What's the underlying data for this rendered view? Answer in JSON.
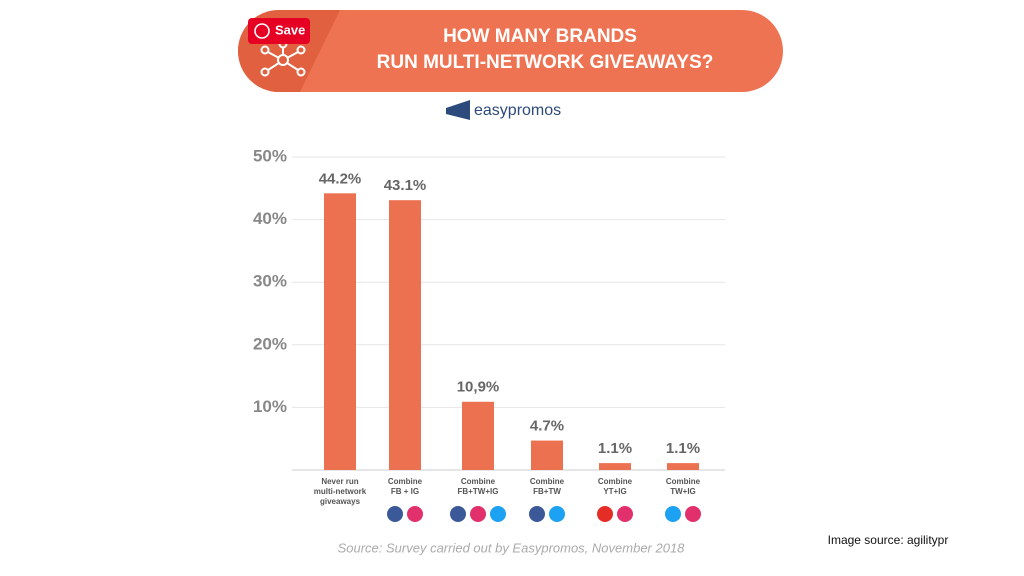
{
  "save_button": "Save",
  "logo": "easypromos",
  "image_source": "Image source: agilitypr",
  "chart_data": {
    "type": "bar",
    "title": [
      "HOW MANY BRANDS",
      "RUN MULTI-NETWORK GIVEAWAYS?"
    ],
    "categories": [
      [
        "Never run",
        "multi-network",
        "giveaways"
      ],
      [
        "Combine",
        "FB + IG"
      ],
      [
        "Combine",
        "FB+TW+IG"
      ],
      [
        "Combine",
        "FB+TW"
      ],
      [
        "Combine",
        "YT+IG"
      ],
      [
        "Combine",
        "TW+IG"
      ]
    ],
    "values": [
      44.2,
      43.1,
      10.9,
      4.7,
      1.1,
      1.1
    ],
    "value_labels": [
      "44.2%",
      "43.1%",
      "10,9%",
      "4.7%",
      "1.1%",
      "1.1%"
    ],
    "color": "#ec7150",
    "ylim": [
      0,
      50
    ],
    "yticks": [
      {
        "value": 10,
        "label": "10%"
      },
      {
        "value": 20,
        "label": "20%"
      },
      {
        "value": 30,
        "label": "30%"
      },
      {
        "value": 40,
        "label": "40%"
      },
      {
        "value": 50,
        "label": "50%"
      }
    ],
    "grid": true,
    "source": "Source: Survey carried out by Easypromos, November 2018"
  }
}
